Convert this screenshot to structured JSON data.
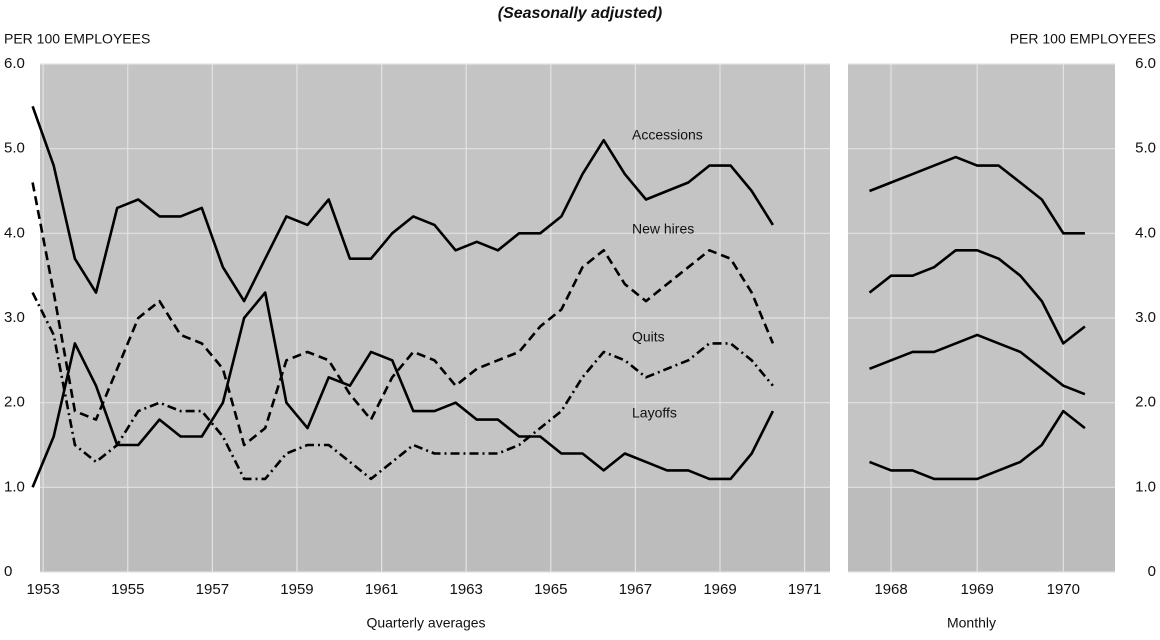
{
  "chart_data": [
    {
      "type": "line",
      "title": "(Seasonally adjusted)",
      "y_label": "PER 100 EMPLOYEES",
      "x_label": "Quarterly averages",
      "xlim": [
        1952.5,
        1971.6
      ],
      "xticks": [
        1953,
        1955,
        1957,
        1959,
        1961,
        1963,
        1965,
        1967,
        1969,
        1971
      ],
      "ylim": [
        0,
        6
      ],
      "yticks": [
        0,
        {
          "value": 1,
          "label": "1.0"
        },
        {
          "value": 2,
          "label": "2.0"
        },
        {
          "value": 3,
          "label": "3.0"
        },
        {
          "value": 4,
          "label": "4.0"
        },
        {
          "value": 5,
          "label": "5.0"
        },
        {
          "value": 6,
          "label": "6.0"
        }
      ],
      "grid": true,
      "x": [
        1952.75,
        1953.25,
        1953.75,
        1954.25,
        1954.75,
        1955.25,
        1955.75,
        1956.25,
        1956.75,
        1957.25,
        1957.75,
        1958.25,
        1958.75,
        1959.25,
        1959.75,
        1960.25,
        1960.75,
        1961.25,
        1961.75,
        1962.25,
        1962.75,
        1963.25,
        1963.75,
        1964.25,
        1964.75,
        1965.25,
        1965.75,
        1966.25,
        1966.75,
        1967.25,
        1967.75,
        1968.25,
        1968.75,
        1969.25,
        1969.75,
        1970.25
      ],
      "series": [
        {
          "name": "Accessions",
          "color": "#000000",
          "style": "solid",
          "values": [
            5.5,
            4.8,
            3.7,
            3.3,
            4.3,
            4.4,
            4.2,
            4.2,
            4.3,
            3.6,
            3.2,
            3.7,
            4.2,
            4.1,
            4.4,
            3.7,
            3.7,
            4.0,
            4.2,
            4.1,
            3.8,
            3.9,
            3.8,
            4.0,
            4.0,
            4.2,
            4.7,
            5.1,
            4.7,
            4.4,
            4.5,
            4.6,
            4.8,
            4.8,
            4.5,
            4.1
          ]
        },
        {
          "name": "New hires",
          "color": "#000000",
          "style": "dashed",
          "values": [
            4.6,
            3.3,
            1.9,
            1.8,
            2.4,
            3.0,
            3.2,
            2.8,
            2.7,
            2.4,
            1.5,
            1.7,
            2.5,
            2.6,
            2.5,
            2.1,
            1.8,
            2.3,
            2.6,
            2.5,
            2.2,
            2.4,
            2.5,
            2.6,
            2.9,
            3.1,
            3.6,
            3.8,
            3.4,
            3.2,
            3.4,
            3.6,
            3.8,
            3.7,
            3.3,
            2.7
          ]
        },
        {
          "name": "Quits",
          "color": "#000000",
          "style": "dashdot",
          "values": [
            3.3,
            2.8,
            1.5,
            1.3,
            1.5,
            1.9,
            2.0,
            1.9,
            1.9,
            1.6,
            1.1,
            1.1,
            1.4,
            1.5,
            1.5,
            1.3,
            1.1,
            1.3,
            1.5,
            1.4,
            1.4,
            1.4,
            1.4,
            1.5,
            1.7,
            1.9,
            2.3,
            2.6,
            2.5,
            2.3,
            2.4,
            2.5,
            2.7,
            2.7,
            2.5,
            2.2
          ]
        },
        {
          "name": "Layoffs",
          "color": "#000000",
          "style": "solid",
          "values": [
            1.0,
            1.6,
            2.7,
            2.2,
            1.5,
            1.5,
            1.8,
            1.6,
            1.6,
            2.0,
            3.0,
            3.3,
            2.0,
            1.7,
            2.3,
            2.2,
            2.6,
            2.5,
            1.9,
            1.9,
            2.0,
            1.8,
            1.8,
            1.6,
            1.6,
            1.4,
            1.4,
            1.2,
            1.4,
            1.3,
            1.2,
            1.2,
            1.1,
            1.1,
            1.4,
            1.9
          ]
        }
      ]
    },
    {
      "type": "line",
      "y_label": "PER 100 EMPLOYEES",
      "x_label": "Monthly",
      "xlim": [
        1967.5,
        1970.6
      ],
      "xticks": [
        1968,
        1969,
        1970
      ],
      "ylim": [
        0,
        6
      ],
      "yticks": [
        0,
        {
          "value": 1,
          "label": "1.0"
        },
        {
          "value": 2,
          "label": "2.0"
        },
        {
          "value": 3,
          "label": "3.0"
        },
        {
          "value": 4,
          "label": "4.0"
        },
        {
          "value": 5,
          "label": "5.0"
        },
        {
          "value": 6,
          "label": "6.0"
        }
      ],
      "grid": true,
      "x": [
        1967.75,
        1968.0,
        1968.25,
        1968.5,
        1968.75,
        1969.0,
        1969.25,
        1969.5,
        1969.75,
        1970.0,
        1970.25
      ],
      "series": [
        {
          "name": "Accessions",
          "color": "#000000",
          "style": "solid",
          "values": [
            4.5,
            4.6,
            4.7,
            4.8,
            4.9,
            4.8,
            4.8,
            4.6,
            4.4,
            4.0,
            4.0
          ]
        },
        {
          "name": "New hires",
          "color": "#000000",
          "style": "solid",
          "values": [
            3.3,
            3.5,
            3.5,
            3.6,
            3.8,
            3.8,
            3.7,
            3.5,
            3.2,
            2.7,
            2.9
          ]
        },
        {
          "name": "Quits",
          "color": "#000000",
          "style": "solid",
          "values": [
            2.4,
            2.5,
            2.6,
            2.6,
            2.7,
            2.8,
            2.7,
            2.6,
            2.4,
            2.2,
            2.1
          ]
        },
        {
          "name": "Layoffs",
          "color": "#000000",
          "style": "solid",
          "values": [
            1.3,
            1.2,
            1.2,
            1.1,
            1.1,
            1.1,
            1.2,
            1.3,
            1.5,
            1.9,
            1.7
          ]
        }
      ]
    }
  ]
}
